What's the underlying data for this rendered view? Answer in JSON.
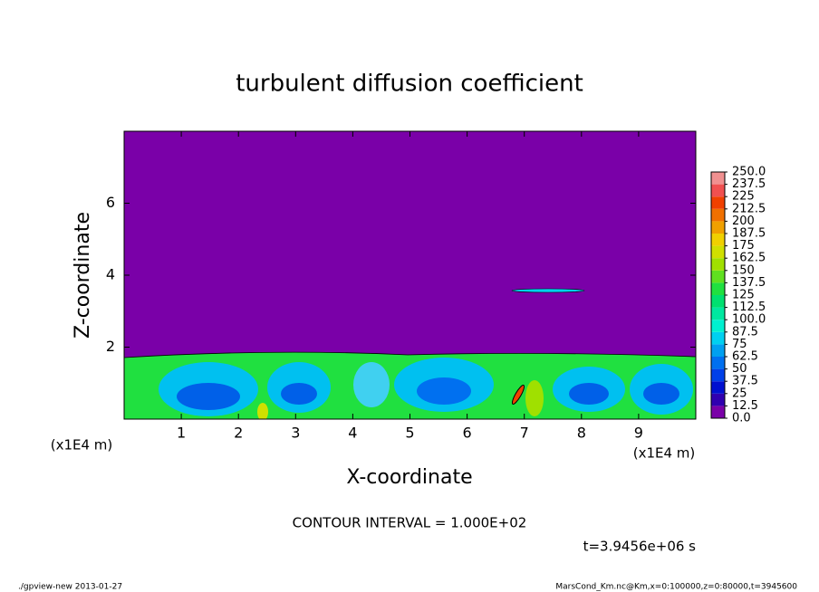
{
  "chart_data": {
    "type": "contour",
    "title": "turbulent diffusion coefficient",
    "xlabel": "X-coordinate",
    "ylabel": "Z-coordinate",
    "x_unit": "(x1E4 m)",
    "y_unit": "(x1E4 m)",
    "xlim": [
      0,
      10
    ],
    "ylim": [
      0,
      8
    ],
    "xticks": [
      1,
      2,
      3,
      4,
      5,
      6,
      7,
      8,
      9
    ],
    "yticks": [
      2,
      4,
      6
    ],
    "contour_note": "CONTOUR INTERVAL = 1.000E+02",
    "time_label": "t=3.9456e+06 s",
    "footer_left": "./gpview-new  2013-01-27",
    "footer_right": "MarsCond_Km.nc@Km,x=0:100000,z=0:80000,t=3945600",
    "colorbar": {
      "levels": [
        {
          "value": 0,
          "label": "0.0"
        },
        12.5,
        25,
        37.5,
        50,
        62.5,
        75,
        87.5,
        {
          "value": 100,
          "label": "100.0"
        },
        112.5,
        125,
        137.5,
        150,
        162.5,
        175,
        187.5,
        200,
        212.5,
        225,
        237.5,
        {
          "value": 250,
          "label": "250.0"
        }
      ],
      "colors": [
        "#7a00a8",
        "#3000b0",
        "#0010d0",
        "#0040e8",
        "#0070f0",
        "#00a0f0",
        "#00d0f0",
        "#00f0d0",
        "#00e8a0",
        "#00e070",
        "#20e040",
        "#60e020",
        "#a0e000",
        "#d0e000",
        "#f0d000",
        "#f0a000",
        "#f07000",
        "#f04000",
        "#f05050",
        "#f09090"
      ]
    }
  }
}
